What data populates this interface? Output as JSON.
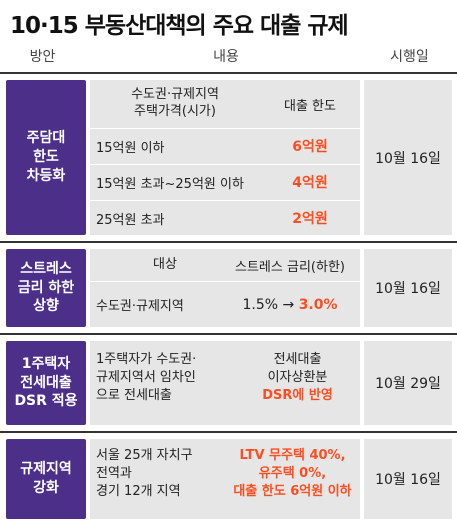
{
  "title": "10·15 부동산대책의 주요 대출 규제",
  "header": {
    "col1": "방안",
    "col2": "내용",
    "col3": "시행일"
  },
  "sections": [
    {
      "label_lines": [
        "주담대",
        "한도",
        "차등화"
      ],
      "date": "10월 16일",
      "table_head": {
        "col1_lines": [
          "수도권·규제지역",
          "주택가격(시가)"
        ],
        "col2": "대출 한도"
      },
      "rows": [
        {
          "cond": "15억원 이하",
          "value": "6억원"
        },
        {
          "cond": "15억원 초과~25억원 이하",
          "value": "4억원"
        },
        {
          "cond": "25억원 초과",
          "value": "2억원"
        }
      ]
    },
    {
      "label_lines": [
        "스트레스",
        "금리 하한",
        "상향"
      ],
      "date": "10월 16일",
      "table_head": {
        "col1": "대상",
        "col2": "스트레스 금리(하한)"
      },
      "row": {
        "target": "수도권·규제지역",
        "from": "1.5%",
        "arrow": "→",
        "to": "3.0%"
      }
    },
    {
      "label_lines": [
        "1주택자",
        "전세대출",
        "DSR 적용"
      ],
      "date": "10월 29일",
      "left_lines": [
        "1주택자가 수도권·",
        "규제지역서 임차인",
        "으로 전세대출"
      ],
      "right_lines": [
        "전세대출",
        "이자상환분"
      ],
      "right_red": "DSR에 반영"
    },
    {
      "label_lines": [
        "규제지역",
        "강화"
      ],
      "date": "10월 16일",
      "left_lines": [
        "서울 25개 자치구",
        "전역과",
        "경기 12개 지역"
      ],
      "right_red_lines": [
        "LTV 무주택 40%,",
        "유주택 0%,",
        "대출 한도 6억원 이하"
      ]
    }
  ]
}
